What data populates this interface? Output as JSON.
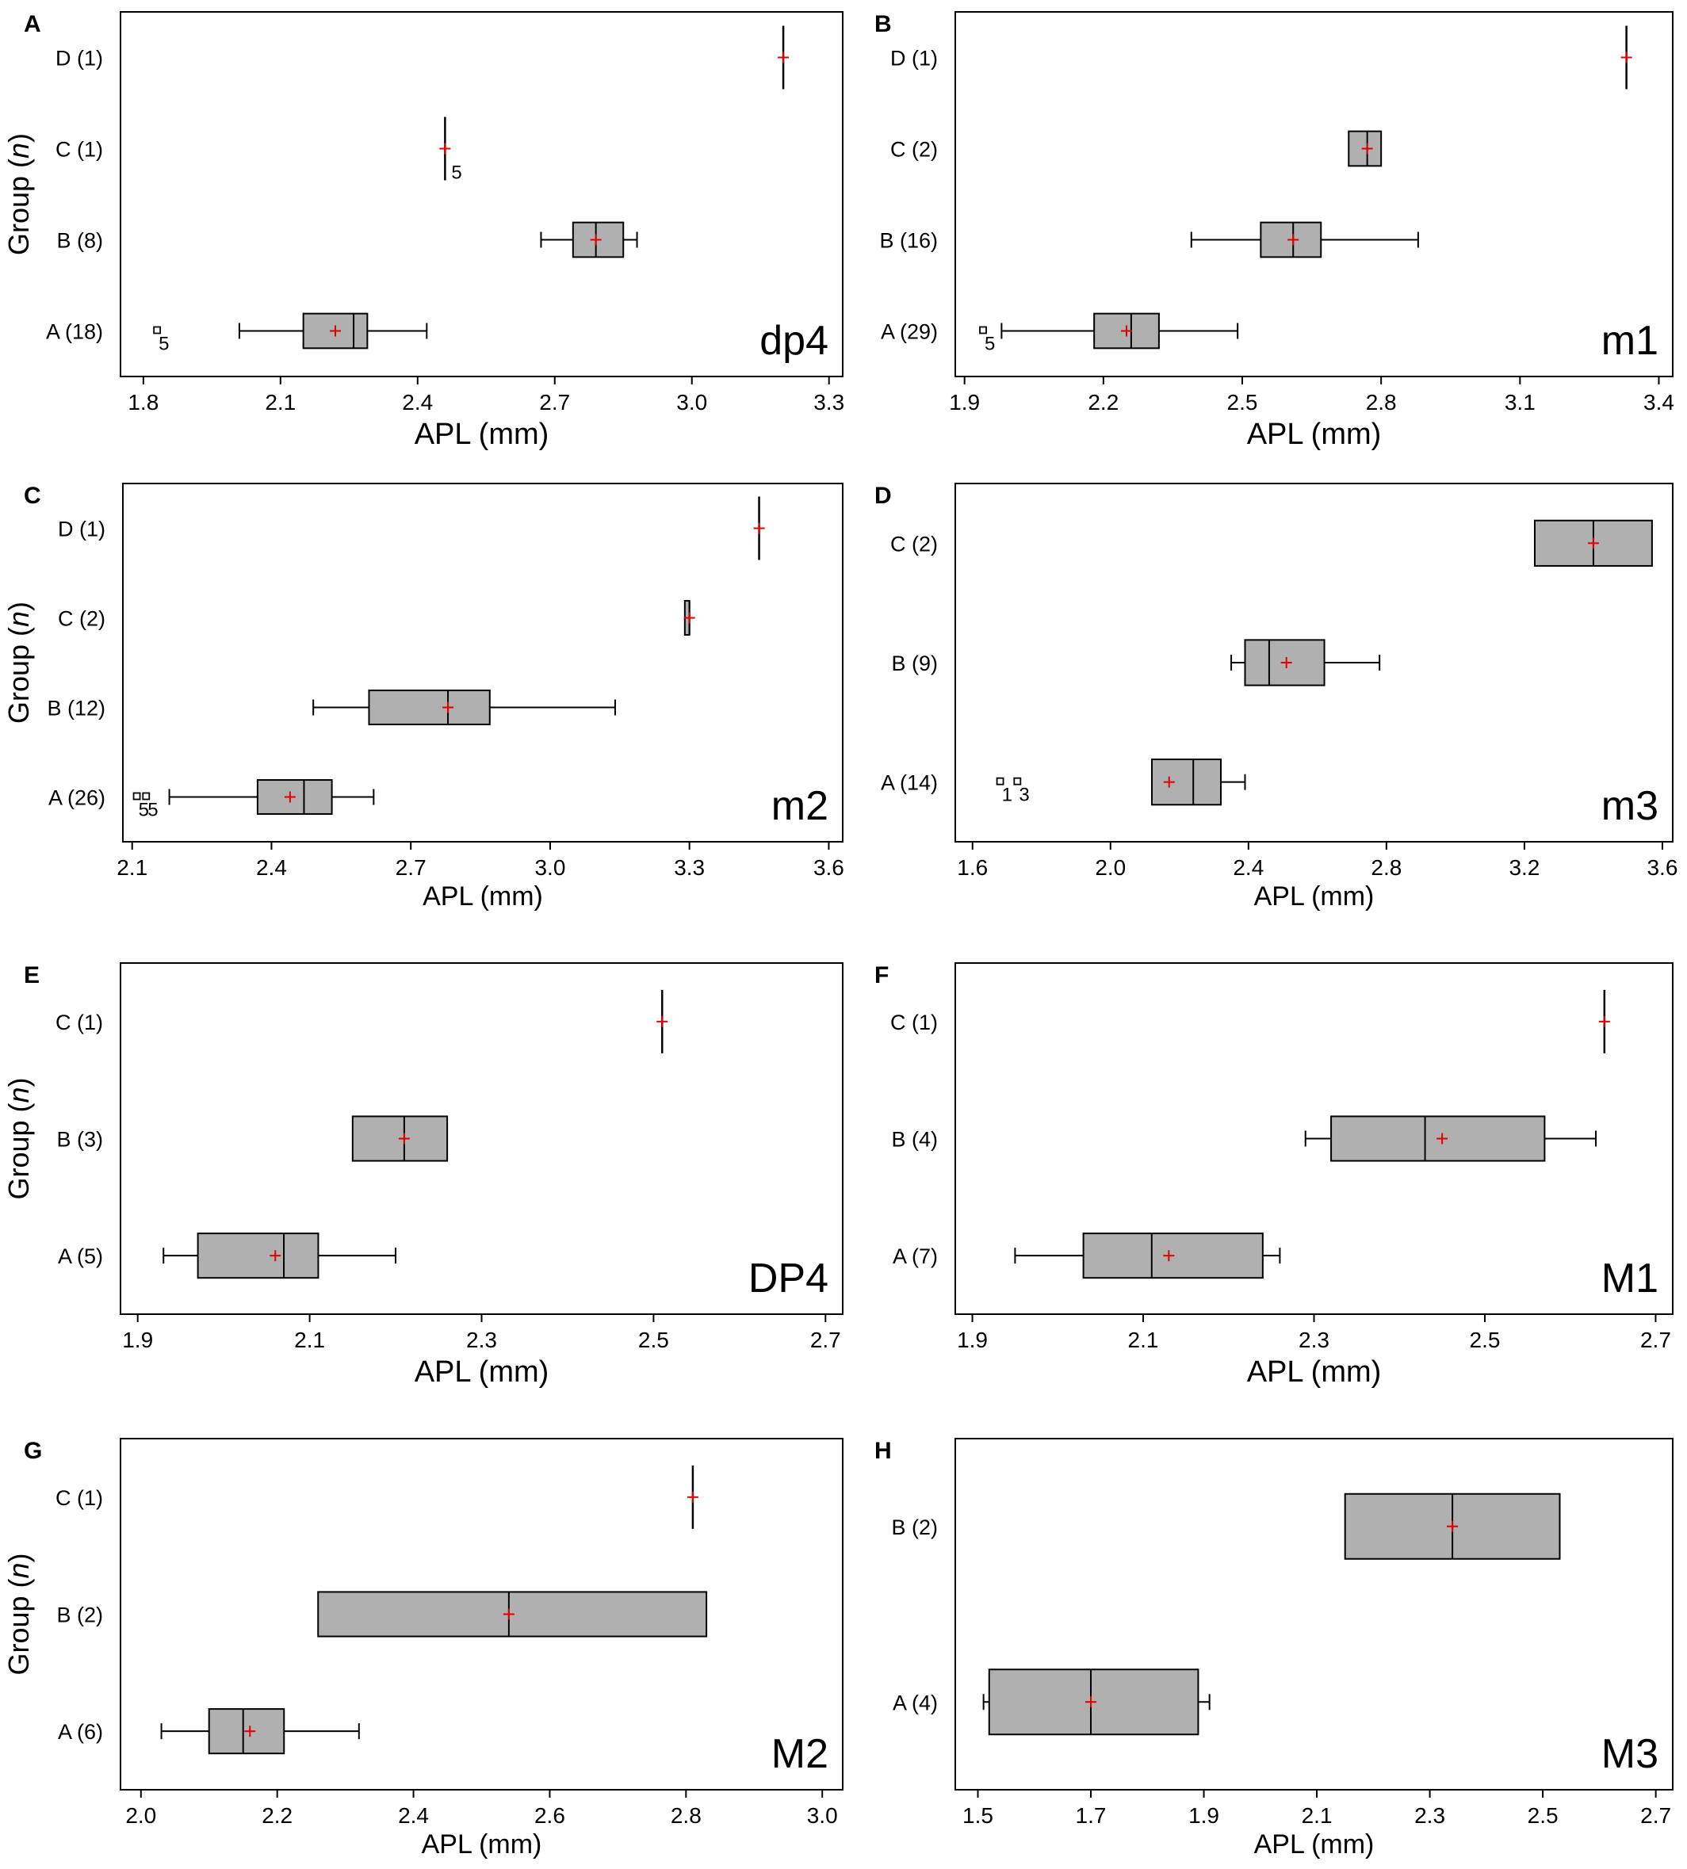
{
  "chart_data": [
    {
      "panel": "A",
      "type": "boxplot",
      "tooth": "dp4",
      "xlabel": "APL (mm)",
      "ylabel": "Group (n)",
      "xlim": [
        1.75,
        3.33
      ],
      "xticks": [
        "1.8",
        "2.1",
        "2.4",
        "2.7",
        "3.0",
        "3.3"
      ],
      "groups": [
        {
          "label": "D (1)",
          "min": 3.2,
          "q1": 3.2,
          "median": 3.2,
          "q3": 3.2,
          "max": 3.2,
          "mean": 3.2
        },
        {
          "label": "C (1)",
          "min": 2.46,
          "q1": 2.46,
          "median": 2.46,
          "q3": 2.46,
          "max": 2.46,
          "mean": 2.46,
          "annotation": "5"
        },
        {
          "label": "B (8)",
          "min": 2.67,
          "q1": 2.74,
          "median": 2.79,
          "q3": 2.85,
          "max": 2.88,
          "mean": 2.79
        },
        {
          "label": "A (18)",
          "min": 2.01,
          "q1": 2.15,
          "median": 2.26,
          "q3": 2.29,
          "max": 2.42,
          "mean": 2.22,
          "outliers": [
            {
              "value": 1.83,
              "label": "5"
            }
          ]
        }
      ]
    },
    {
      "panel": "B",
      "type": "boxplot",
      "tooth": "m1",
      "xlabel": "APL (mm)",
      "ylabel": "",
      "xlim": [
        1.88,
        3.43
      ],
      "xticks": [
        "1.9",
        "2.2",
        "2.5",
        "2.8",
        "3.1",
        "3.4"
      ],
      "groups": [
        {
          "label": "D (1)",
          "min": 3.33,
          "q1": 3.33,
          "median": 3.33,
          "q3": 3.33,
          "max": 3.33,
          "mean": 3.33
        },
        {
          "label": "C (2)",
          "min": 2.73,
          "q1": 2.73,
          "median": 2.77,
          "q3": 2.8,
          "max": 2.8,
          "mean": 2.77
        },
        {
          "label": "B (16)",
          "min": 2.39,
          "q1": 2.54,
          "median": 2.61,
          "q3": 2.67,
          "max": 2.88,
          "mean": 2.61
        },
        {
          "label": "A (29)",
          "min": 1.98,
          "q1": 2.18,
          "median": 2.26,
          "q3": 2.32,
          "max": 2.49,
          "mean": 2.25,
          "outliers": [
            {
              "value": 1.94,
              "label": "5"
            }
          ]
        }
      ]
    },
    {
      "panel": "C",
      "type": "boxplot",
      "tooth": "m2",
      "xlabel": "APL (mm)",
      "ylabel": "Group (n)",
      "xlim": [
        2.08,
        3.63
      ],
      "xticks": [
        "2.1",
        "2.4",
        "2.7",
        "3.0",
        "3.3",
        "3.6"
      ],
      "groups": [
        {
          "label": "D (1)",
          "min": 3.45,
          "q1": 3.45,
          "median": 3.45,
          "q3": 3.45,
          "max": 3.45,
          "mean": 3.45
        },
        {
          "label": "C (2)",
          "min": 3.29,
          "q1": 3.29,
          "median": 3.3,
          "q3": 3.3,
          "max": 3.3,
          "mean": 3.3
        },
        {
          "label": "B (12)",
          "min": 2.49,
          "q1": 2.61,
          "median": 2.78,
          "q3": 2.87,
          "max": 3.14,
          "mean": 2.78
        },
        {
          "label": "A (26)",
          "min": 2.18,
          "q1": 2.37,
          "median": 2.47,
          "q3": 2.53,
          "max": 2.62,
          "mean": 2.44,
          "outliers": [
            {
              "value": 2.11,
              "label": "5"
            },
            {
              "value": 2.13,
              "label": "5"
            }
          ]
        }
      ]
    },
    {
      "panel": "D",
      "type": "boxplot",
      "tooth": "m3",
      "xlabel": "APL (mm)",
      "ylabel": "",
      "xlim": [
        1.55,
        3.63
      ],
      "xticks": [
        "1.6",
        "2.0",
        "2.4",
        "2.8",
        "3.2",
        "3.6"
      ],
      "groups": [
        {
          "label": "C (2)",
          "min": 3.23,
          "q1": 3.23,
          "median": 3.4,
          "q3": 3.57,
          "max": 3.57,
          "mean": 3.4
        },
        {
          "label": "B (9)",
          "min": 2.35,
          "q1": 2.39,
          "median": 2.46,
          "q3": 2.62,
          "max": 2.78,
          "mean": 2.51
        },
        {
          "label": "A (14)",
          "min": 2.12,
          "q1": 2.12,
          "median": 2.24,
          "q3": 2.32,
          "max": 2.39,
          "mean": 2.17,
          "outliers": [
            {
              "value": 1.68,
              "label": "1"
            },
            {
              "value": 1.73,
              "label": "3"
            }
          ]
        }
      ]
    },
    {
      "panel": "E",
      "type": "boxplot",
      "tooth": "DP4",
      "xlabel": "APL (mm)",
      "ylabel": "Group (n)",
      "xlim": [
        1.88,
        2.72
      ],
      "xticks": [
        "1.9",
        "2.1",
        "2.3",
        "2.5",
        "2.7"
      ],
      "groups": [
        {
          "label": "C (1)",
          "min": 2.51,
          "q1": 2.51,
          "median": 2.51,
          "q3": 2.51,
          "max": 2.51,
          "mean": 2.51
        },
        {
          "label": "B (3)",
          "min": 2.15,
          "q1": 2.15,
          "median": 2.21,
          "q3": 2.26,
          "max": 2.26,
          "mean": 2.21
        },
        {
          "label": "A (5)",
          "min": 1.93,
          "q1": 1.97,
          "median": 2.07,
          "q3": 2.11,
          "max": 2.2,
          "mean": 2.06
        }
      ]
    },
    {
      "panel": "F",
      "type": "boxplot",
      "tooth": "M1",
      "xlabel": "APL (mm)",
      "ylabel": "",
      "xlim": [
        1.88,
        2.72
      ],
      "xticks": [
        "1.9",
        "2.1",
        "2.3",
        "2.5",
        "2.7"
      ],
      "groups": [
        {
          "label": "C (1)",
          "min": 2.64,
          "q1": 2.64,
          "median": 2.64,
          "q3": 2.64,
          "max": 2.64,
          "mean": 2.64
        },
        {
          "label": "B (4)",
          "min": 2.29,
          "q1": 2.32,
          "median": 2.43,
          "q3": 2.57,
          "max": 2.63,
          "mean": 2.45
        },
        {
          "label": "A (7)",
          "min": 1.95,
          "q1": 2.03,
          "median": 2.11,
          "q3": 2.24,
          "max": 2.26,
          "mean": 2.13
        }
      ]
    },
    {
      "panel": "G",
      "type": "boxplot",
      "tooth": "M2",
      "xlabel": "APL (mm)",
      "ylabel": "Group (n)",
      "xlim": [
        1.97,
        3.03
      ],
      "xticks": [
        "2.0",
        "2.2",
        "2.4",
        "2.6",
        "2.8",
        "3.0"
      ],
      "groups": [
        {
          "label": "C (1)",
          "min": 2.81,
          "q1": 2.81,
          "median": 2.81,
          "q3": 2.81,
          "max": 2.81,
          "mean": 2.81
        },
        {
          "label": "B (2)",
          "min": 2.26,
          "q1": 2.26,
          "median": 2.54,
          "q3": 2.83,
          "max": 2.83,
          "mean": 2.54
        },
        {
          "label": "A (6)",
          "min": 2.03,
          "q1": 2.1,
          "median": 2.15,
          "q3": 2.21,
          "max": 2.32,
          "mean": 2.16
        }
      ]
    },
    {
      "panel": "H",
      "type": "boxplot",
      "tooth": "M3",
      "xlabel": "APL (mm)",
      "ylabel": "",
      "xlim": [
        1.46,
        2.73
      ],
      "xticks": [
        "1.5",
        "1.7",
        "1.9",
        "2.1",
        "2.3",
        "2.5",
        "2.7"
      ],
      "groups": [
        {
          "label": "B (2)",
          "min": 2.15,
          "q1": 2.15,
          "median": 2.34,
          "q3": 2.53,
          "max": 2.53,
          "mean": 2.34
        },
        {
          "label": "A (4)",
          "min": 1.51,
          "q1": 1.52,
          "median": 1.7,
          "q3": 1.89,
          "max": 1.91,
          "mean": 1.7
        }
      ]
    }
  ],
  "colors": {
    "box_fill": "#b0b0b0",
    "mean_marker": "#e00000",
    "line": "#000000"
  }
}
